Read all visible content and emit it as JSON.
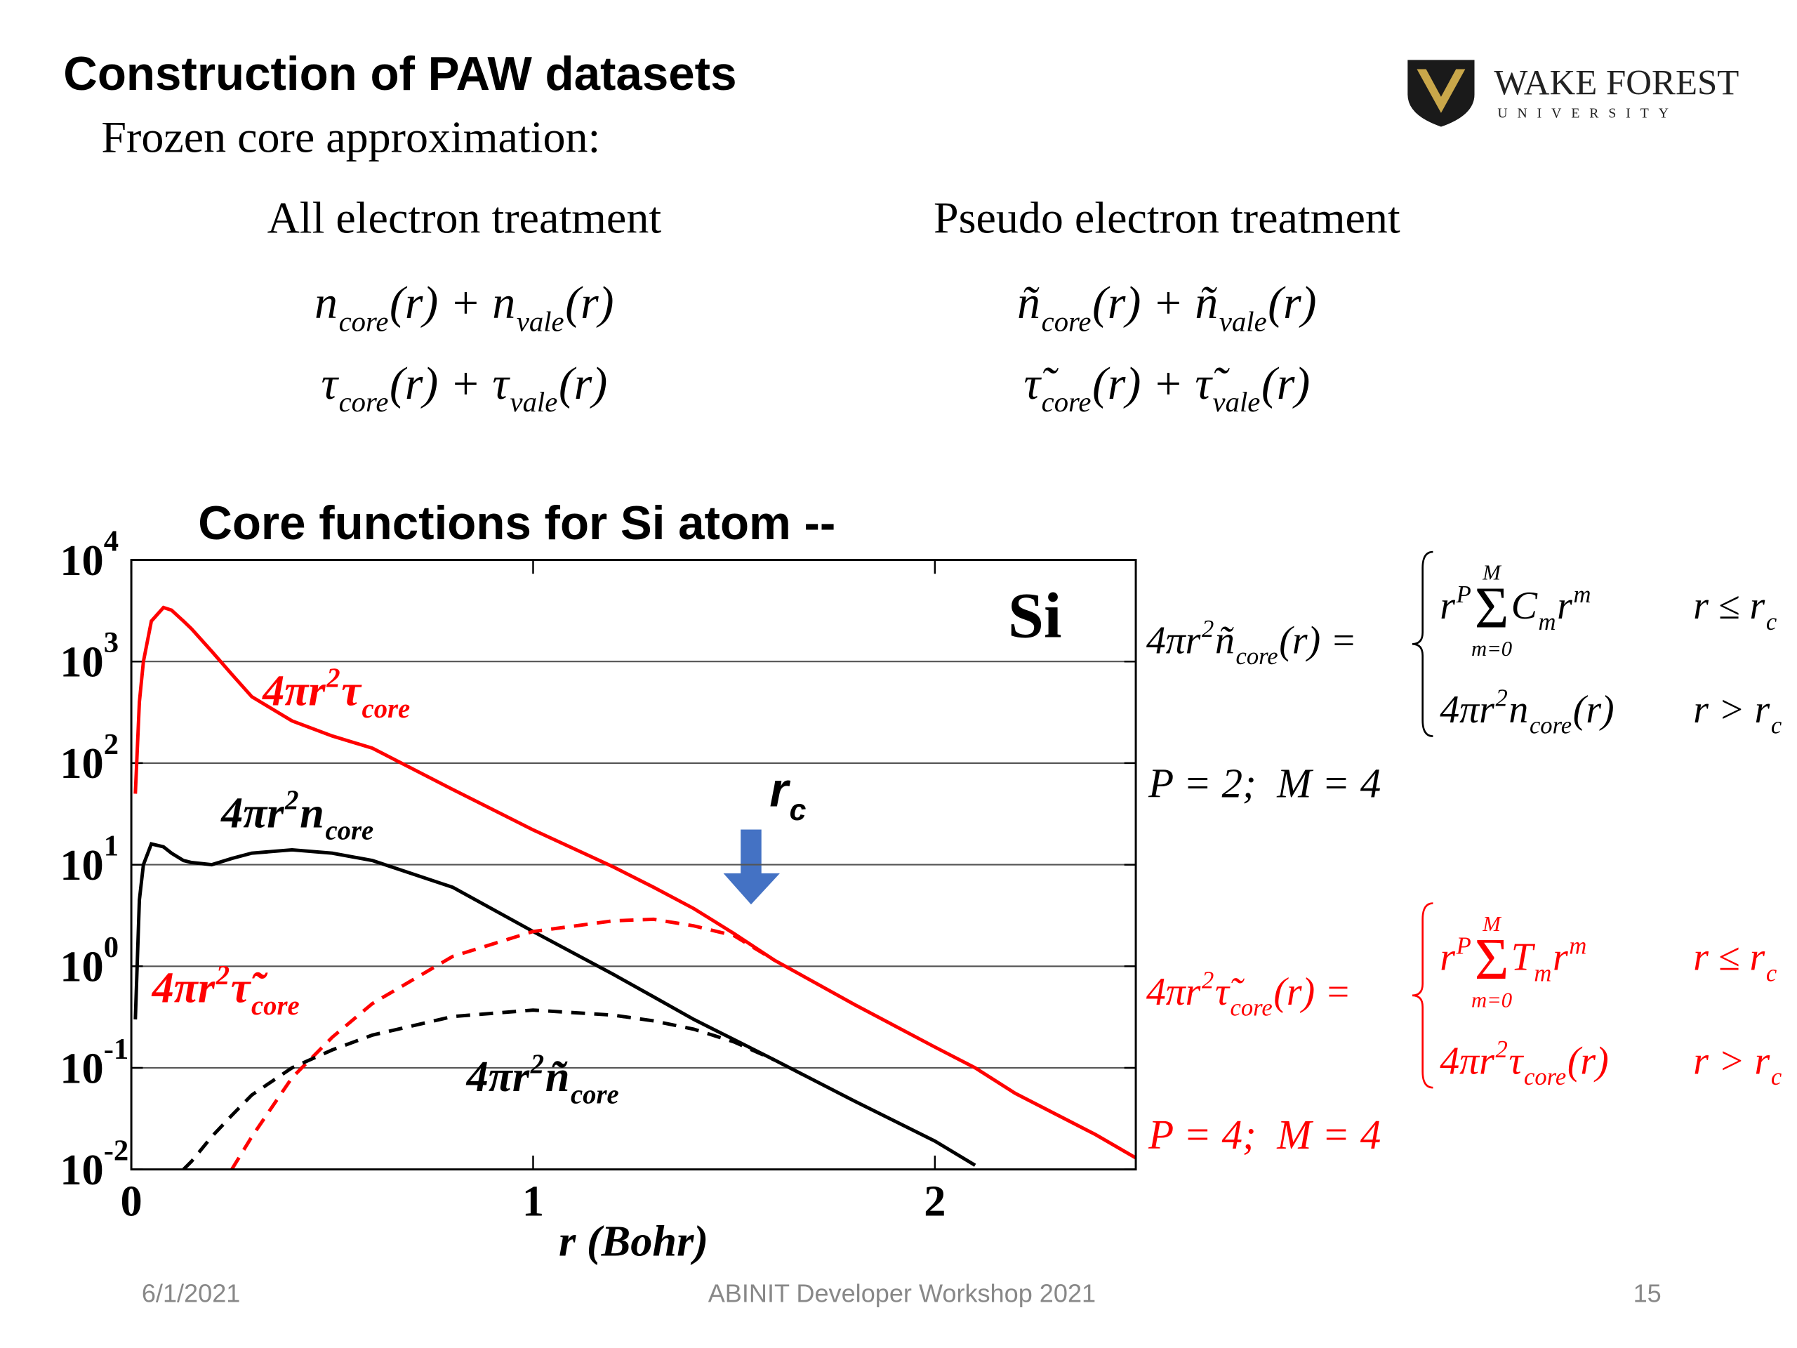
{
  "header": {
    "title": "Construction of PAW datasets",
    "subtitle": "Frozen core approximation:"
  },
  "logo": {
    "name": "WAKE FOREST",
    "sub": "UNIVERSITY"
  },
  "treatments": [
    {
      "heading": "All electron treatment",
      "equations": [
        [
          {
            "text": "n"
          },
          {
            "sub": "core"
          },
          {
            "text": "(r) + n"
          },
          {
            "sub": "vale"
          },
          {
            "text": "(r)"
          }
        ],
        [
          {
            "text": "τ"
          },
          {
            "sub": "core"
          },
          {
            "text": "(r) + τ"
          },
          {
            "sub": "vale"
          },
          {
            "text": "(r)"
          }
        ]
      ]
    },
    {
      "heading": "Pseudo electron treatment",
      "equations": [
        [
          {
            "text": "ñ"
          },
          {
            "sub": "core"
          },
          {
            "text": "(r) + ñ"
          },
          {
            "sub": "vale"
          },
          {
            "text": "(r)"
          }
        ],
        [
          {
            "text": "τ̃"
          },
          {
            "sub": "core"
          },
          {
            "text": "(r) + τ̃"
          },
          {
            "sub": "vale"
          },
          {
            "text": "(r)"
          }
        ]
      ]
    }
  ],
  "chart_data": {
    "type": "line",
    "title": "Core functions for Si atom --",
    "xlabel": "r (Bohr)",
    "yscale": "log",
    "grid": true,
    "xlim": [
      0,
      2.5
    ],
    "xticks": [
      0,
      1,
      2
    ],
    "ylim": [
      0.01,
      10000
    ],
    "yticks": [
      {
        "value": 0.01,
        "label": "10",
        "exponent": "-2"
      },
      {
        "value": 0.1,
        "label": "10",
        "exponent": "-1"
      },
      {
        "value": 1,
        "label": "10",
        "exponent": "0"
      },
      {
        "value": 10,
        "label": "10",
        "exponent": "1"
      },
      {
        "value": 100,
        "label": "10",
        "exponent": "2"
      },
      {
        "value": 1000,
        "label": "10",
        "exponent": "3"
      },
      {
        "value": 10000,
        "label": "10",
        "exponent": "4"
      }
    ],
    "x": [
      0.01,
      0.02,
      0.03,
      0.05,
      0.08,
      0.1,
      0.13,
      0.15,
      0.2,
      0.25,
      0.3,
      0.4,
      0.5,
      0.6,
      0.8,
      1.0,
      1.2,
      1.3,
      1.4,
      1.5,
      1.6,
      1.8,
      2.0,
      2.1,
      2.2,
      2.4,
      2.5
    ],
    "series": [
      {
        "color": "#ff0000",
        "dashed": false,
        "values": [
          50,
          400,
          1000,
          2500,
          3400,
          3200,
          2500,
          2100,
          1260,
          750,
          450,
          260,
          185,
          140,
          55,
          22,
          9.5,
          6,
          3.7,
          2.1,
          1.15,
          0.42,
          0.16,
          0.1,
          0.056,
          0.022,
          0.013
        ]
      },
      {
        "color": "#000000",
        "dashed": false,
        "values": [
          0.3,
          4.5,
          10,
          16,
          15,
          13,
          11,
          10.5,
          10,
          11.5,
          13,
          14,
          13,
          11,
          6,
          2.2,
          0.83,
          0.5,
          0.3,
          0.19,
          0.12,
          0.047,
          0.019,
          0.011,
          null,
          null,
          null
        ]
      },
      {
        "color": "#ff0000",
        "dashed": true,
        "values": [
          null,
          null,
          null,
          null,
          null,
          null,
          null,
          null,
          null,
          0.01,
          0.021,
          0.08,
          0.2,
          0.43,
          1.25,
          2.2,
          2.8,
          2.9,
          2.5,
          2.0,
          1.15,
          null,
          null,
          null,
          null,
          null,
          null
        ]
      },
      {
        "color": "#000000",
        "dashed": true,
        "values": [
          null,
          null,
          null,
          null,
          null,
          null,
          0.01,
          0.012,
          0.021,
          0.034,
          0.054,
          0.1,
          0.15,
          0.21,
          0.32,
          0.37,
          0.33,
          0.29,
          0.24,
          0.18,
          0.12,
          null,
          null,
          null,
          null,
          null,
          null
        ]
      }
    ],
    "annotations": [
      {
        "color": "#ff0000",
        "parts": [
          {
            "text": "4πr"
          },
          {
            "sup": "2"
          },
          {
            "text": "τ"
          },
          {
            "sub": "core"
          }
        ]
      },
      {
        "color": "#000000",
        "parts": [
          {
            "text": "4πr"
          },
          {
            "sup": "2"
          },
          {
            "text": "n"
          },
          {
            "sub": "core"
          }
        ]
      },
      {
        "color": "#ff0000",
        "parts": [
          {
            "text": "4πr"
          },
          {
            "sup": "2"
          },
          {
            "text": "τ̃"
          },
          {
            "sub": "core"
          }
        ]
      },
      {
        "color": "#000000",
        "parts": [
          {
            "text": "4πr"
          },
          {
            "sup": "2"
          },
          {
            "text": "ñ"
          },
          {
            "sub": "core"
          }
        ]
      }
    ],
    "element": "Si",
    "cutoff": [
      {
        "text": "r"
      },
      {
        "sub": "c"
      }
    ]
  },
  "definitions": [
    {
      "color": "#000000",
      "lhs": [
        {
          "text": "4πr"
        },
        {
          "sup": "2"
        },
        {
          "text": "ñ"
        },
        {
          "sub": "core"
        },
        {
          "text": "(r) ="
        }
      ],
      "cases": [
        {
          "expr": [
            {
              "text": "r"
            },
            {
              "sup": "P"
            },
            {
              "sum": "Σ",
              "over": "M",
              "under": "m=0"
            },
            {
              "text": "C"
            },
            {
              "sub": "m"
            },
            {
              "text": "r"
            },
            {
              "sup": "m"
            }
          ],
          "cond": [
            {
              "text": "r ≤ r"
            },
            {
              "sub": "c"
            }
          ]
        },
        {
          "expr": [
            {
              "text": "4πr"
            },
            {
              "sup": "2"
            },
            {
              "text": "n"
            },
            {
              "sub": "core"
            },
            {
              "text": "(r)"
            }
          ],
          "cond": [
            {
              "text": "r > r"
            },
            {
              "sub": "c"
            }
          ]
        }
      ],
      "params": "P = 2;  M = 4"
    },
    {
      "color": "#ff0000",
      "lhs": [
        {
          "text": "4πr"
        },
        {
          "sup": "2"
        },
        {
          "text": "τ̃"
        },
        {
          "sub": "core"
        },
        {
          "text": "(r) ="
        }
      ],
      "cases": [
        {
          "expr": [
            {
              "text": "r"
            },
            {
              "sup": "P"
            },
            {
              "sum": "Σ",
              "over": "M",
              "under": "m=0"
            },
            {
              "text": "T"
            },
            {
              "sub": "m"
            },
            {
              "text": "r"
            },
            {
              "sup": "m"
            }
          ],
          "cond": [
            {
              "text": "r ≤ r"
            },
            {
              "sub": "c"
            }
          ]
        },
        {
          "expr": [
            {
              "text": "4πr"
            },
            {
              "sup": "2"
            },
            {
              "text": "τ"
            },
            {
              "sub": "core"
            },
            {
              "text": "(r)"
            }
          ],
          "cond": [
            {
              "text": "r > r"
            },
            {
              "sub": "c"
            }
          ]
        }
      ],
      "params": "P = 4;  M = 4"
    }
  ],
  "footer": {
    "date": "6/1/2021",
    "event": "ABINIT Developer Workshop 2021",
    "page": "15"
  }
}
